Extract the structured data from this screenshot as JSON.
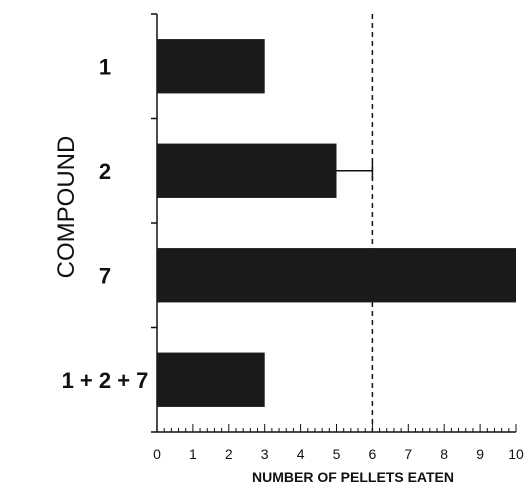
{
  "chart_data": {
    "type": "bar",
    "orientation": "horizontal",
    "categories": [
      "1",
      "2",
      "7",
      "1 + 2 + 7"
    ],
    "values": [
      3,
      5,
      10,
      3
    ],
    "error_bars": [
      null,
      1,
      null,
      null
    ],
    "xlabel": "NUMBER OF PELLETS EATEN",
    "ylabel": "COMPOUND",
    "xlim": [
      0,
      10
    ],
    "x_ticks": [
      "0",
      "1",
      "2",
      "3",
      "4",
      "5",
      "6",
      "7",
      "8",
      "9",
      "10"
    ],
    "reference_line": 6,
    "grid": false,
    "bar_color": "#1a1a1a"
  }
}
